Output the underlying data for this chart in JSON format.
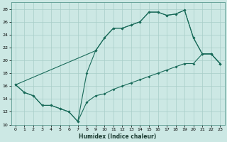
{
  "xlabel": "Humidex (Indice chaleur)",
  "bg_color": "#cce8e4",
  "grid_color": "#a8cdc8",
  "line_color": "#1a6b5a",
  "xlim": [
    -0.5,
    23.5
  ],
  "ylim": [
    10,
    29
  ],
  "yticks": [
    10,
    12,
    14,
    16,
    18,
    20,
    22,
    24,
    26,
    28
  ],
  "xticks": [
    0,
    1,
    2,
    3,
    4,
    5,
    6,
    7,
    8,
    9,
    10,
    11,
    12,
    13,
    14,
    15,
    16,
    17,
    18,
    19,
    20,
    21,
    22,
    23
  ],
  "line_top_x": [
    0,
    9,
    10,
    11,
    12,
    13,
    14,
    15,
    16,
    17,
    18,
    19,
    20,
    21,
    22,
    23
  ],
  "line_top_y": [
    16.2,
    21.5,
    23.5,
    25.0,
    25.0,
    25.5,
    26.0,
    27.5,
    27.5,
    27.0,
    27.2,
    27.8,
    23.5,
    21.0,
    21.0,
    19.5
  ],
  "line_bot_x": [
    0,
    1,
    2,
    3,
    4,
    5,
    6,
    7,
    8,
    9,
    10,
    11,
    12,
    13,
    14,
    15,
    16,
    17,
    18,
    19,
    20,
    21,
    22,
    23
  ],
  "line_bot_y": [
    16.2,
    15.0,
    14.5,
    13.0,
    13.0,
    12.5,
    12.0,
    10.5,
    13.5,
    14.5,
    14.8,
    15.5,
    16.0,
    16.5,
    17.0,
    17.5,
    18.0,
    18.5,
    19.0,
    19.5,
    19.5,
    21.0,
    21.0,
    19.5
  ],
  "line_diag_x": [
    0,
    1,
    2,
    3,
    4,
    5,
    6,
    7,
    8,
    9,
    10,
    11,
    12,
    13,
    14,
    15,
    16,
    17,
    18,
    19,
    20,
    21,
    22,
    23
  ],
  "line_diag_y": [
    16.2,
    15.0,
    14.5,
    13.0,
    13.0,
    12.5,
    12.0,
    10.5,
    18.0,
    21.5,
    23.5,
    25.0,
    25.0,
    25.5,
    26.0,
    27.5,
    27.5,
    27.0,
    27.2,
    27.8,
    23.5,
    21.0,
    21.0,
    19.5
  ]
}
